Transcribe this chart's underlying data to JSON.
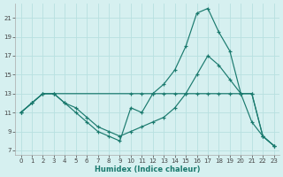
{
  "xlabel": "Humidex (Indice chaleur)",
  "bg_color": "#d6f0f0",
  "grid_color": "#b8e0e0",
  "line_color": "#1a7a6e",
  "xlim": [
    -0.5,
    23.5
  ],
  "ylim": [
    6.5,
    22.5
  ],
  "yticks": [
    7,
    9,
    11,
    13,
    15,
    17,
    19,
    21
  ],
  "xticks": [
    0,
    1,
    2,
    3,
    4,
    5,
    6,
    7,
    8,
    9,
    10,
    11,
    12,
    13,
    14,
    15,
    16,
    17,
    18,
    19,
    20,
    21,
    22,
    23
  ],
  "series": [
    {
      "x": [
        0,
        1,
        2,
        3,
        4,
        5,
        6,
        7,
        8,
        9,
        10,
        11,
        12,
        13,
        14,
        15,
        16,
        17,
        18,
        19,
        20,
        21,
        22,
        23
      ],
      "y": [
        11,
        12,
        13,
        13,
        12,
        11,
        10,
        9,
        8.5,
        8,
        11.5,
        11,
        13,
        14,
        15.5,
        18,
        21.5,
        22,
        19.5,
        17.5,
        13,
        13,
        8.5,
        7.5
      ]
    },
    {
      "x": [
        0,
        1,
        2,
        3,
        10,
        11,
        12,
        13,
        14,
        15,
        16,
        17,
        18,
        19,
        20,
        21,
        22,
        23
      ],
      "y": [
        11,
        12,
        13,
        13,
        13,
        13,
        13,
        13,
        13,
        13,
        13,
        13,
        13,
        13,
        13,
        13,
        8.5,
        7.5
      ]
    },
    {
      "x": [
        0,
        1,
        2,
        3,
        4,
        5,
        6,
        7,
        8,
        9,
        10,
        11,
        12,
        13,
        14,
        15,
        16,
        17,
        18,
        19,
        20,
        21,
        22,
        23
      ],
      "y": [
        11,
        12,
        13,
        13,
        12,
        11.5,
        10.5,
        9.5,
        9,
        8.5,
        9,
        9.5,
        10,
        10.5,
        11.5,
        13,
        15,
        17,
        16,
        14.5,
        13,
        10,
        8.5,
        7.5
      ]
    }
  ]
}
